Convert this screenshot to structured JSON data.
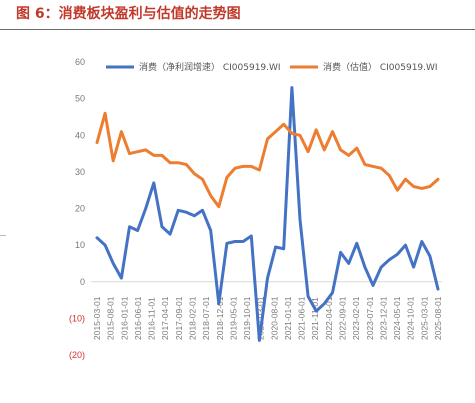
{
  "header": {
    "title": "图 6：消费板块盈利与估值的走势图"
  },
  "chart_data": {
    "type": "line",
    "title": "",
    "xlabel": "",
    "ylabel": "",
    "ylim": [
      -20,
      60
    ],
    "y_ticks": [
      {
        "value": 60,
        "label": "60"
      },
      {
        "value": 50,
        "label": "50"
      },
      {
        "value": 40,
        "label": "40"
      },
      {
        "value": 30,
        "label": "30"
      },
      {
        "value": 20,
        "label": "20"
      },
      {
        "value": 10,
        "label": "10"
      },
      {
        "value": 0,
        "label": "0"
      },
      {
        "value": -10,
        "label": "(10)"
      },
      {
        "value": -20,
        "label": "(20)"
      }
    ],
    "x_tick_labels": [
      "2015-03-01",
      "2015-08-01",
      "2016-01-01",
      "2016-06-01",
      "2016-11-01",
      "2017-04-01",
      "2017-09-01",
      "2018-02-01",
      "2018-07-01",
      "2018-12-01",
      "2019-05-01",
      "2019-10-01",
      "2020-03-01",
      "2020-08-01",
      "2021-01-01",
      "2021-06-01",
      "2021-11-01",
      "2022-04-01",
      "2022-09-01",
      "2023-02-01",
      "2023-07-01",
      "2023-12-01",
      "2024-05-01",
      "2024-10-01",
      "2025-03-01",
      "2025-08-01"
    ],
    "grid": false,
    "legend_position": "top",
    "series": [
      {
        "name": "消费（净利润增速） CI005919.WI",
        "color": "#4472c4",
        "values": [
          12,
          10,
          5,
          1,
          15,
          14,
          20,
          27,
          15,
          13,
          19.5,
          19,
          18,
          19.5,
          14,
          -6,
          10.5,
          11,
          11,
          12.5,
          -16,
          1,
          9.5,
          9,
          53,
          17,
          -4,
          -8,
          -6,
          -3,
          8,
          5,
          10.5,
          4,
          -1,
          4,
          6,
          7.5,
          10,
          4,
          11,
          7,
          -2
        ]
      },
      {
        "name": "消费（估值） CI005919.WI",
        "color": "#ed7d31",
        "values": [
          38,
          46,
          33,
          41,
          35,
          35.5,
          36,
          34.5,
          34.5,
          32.5,
          32.5,
          32,
          29.5,
          28,
          23.5,
          20.5,
          28.5,
          31,
          31.5,
          31.5,
          30.5,
          39,
          41,
          43,
          40.5,
          40,
          35.5,
          41.5,
          36,
          41,
          36,
          34.5,
          36.5,
          32,
          31.5,
          31,
          29,
          25,
          28,
          26,
          25.5,
          26,
          28
        ]
      }
    ]
  }
}
